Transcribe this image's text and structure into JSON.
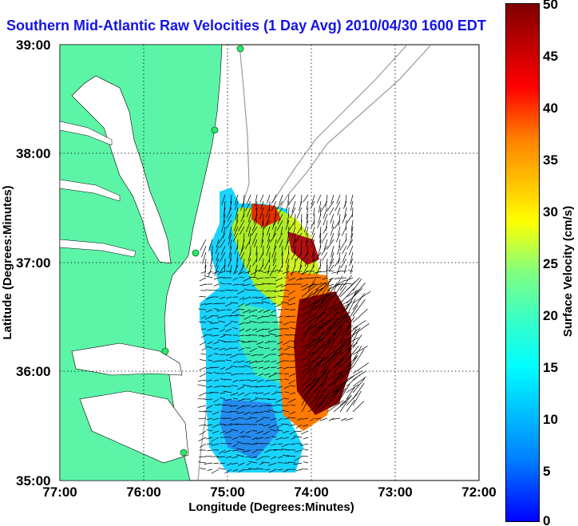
{
  "title": "Southern Mid-Atlantic Raw Velocities (1 Day Avg) 2010/04/30 1600 EDT",
  "axes": {
    "xlabel": "Longitude (Degrees:Minutes)",
    "ylabel": "Latitude (Degrees:Minutes)",
    "x_ticks": [
      "77:00",
      "76:00",
      "75:00",
      "74:00",
      "73:00",
      "72:00"
    ],
    "y_ticks": [
      "39:00",
      "38:00",
      "37:00",
      "36:00",
      "35:00"
    ]
  },
  "colorbar": {
    "label": "Surface Velocity (cm/s)",
    "ticks": [
      "50",
      "45",
      "40",
      "35",
      "30",
      "25",
      "20",
      "15",
      "10",
      "5",
      "0"
    ]
  },
  "colors": {
    "land": "#5cf5a8",
    "title": "#1414e6",
    "bathymetry": "#9a9a9a",
    "max_velocity": "#800000"
  }
}
